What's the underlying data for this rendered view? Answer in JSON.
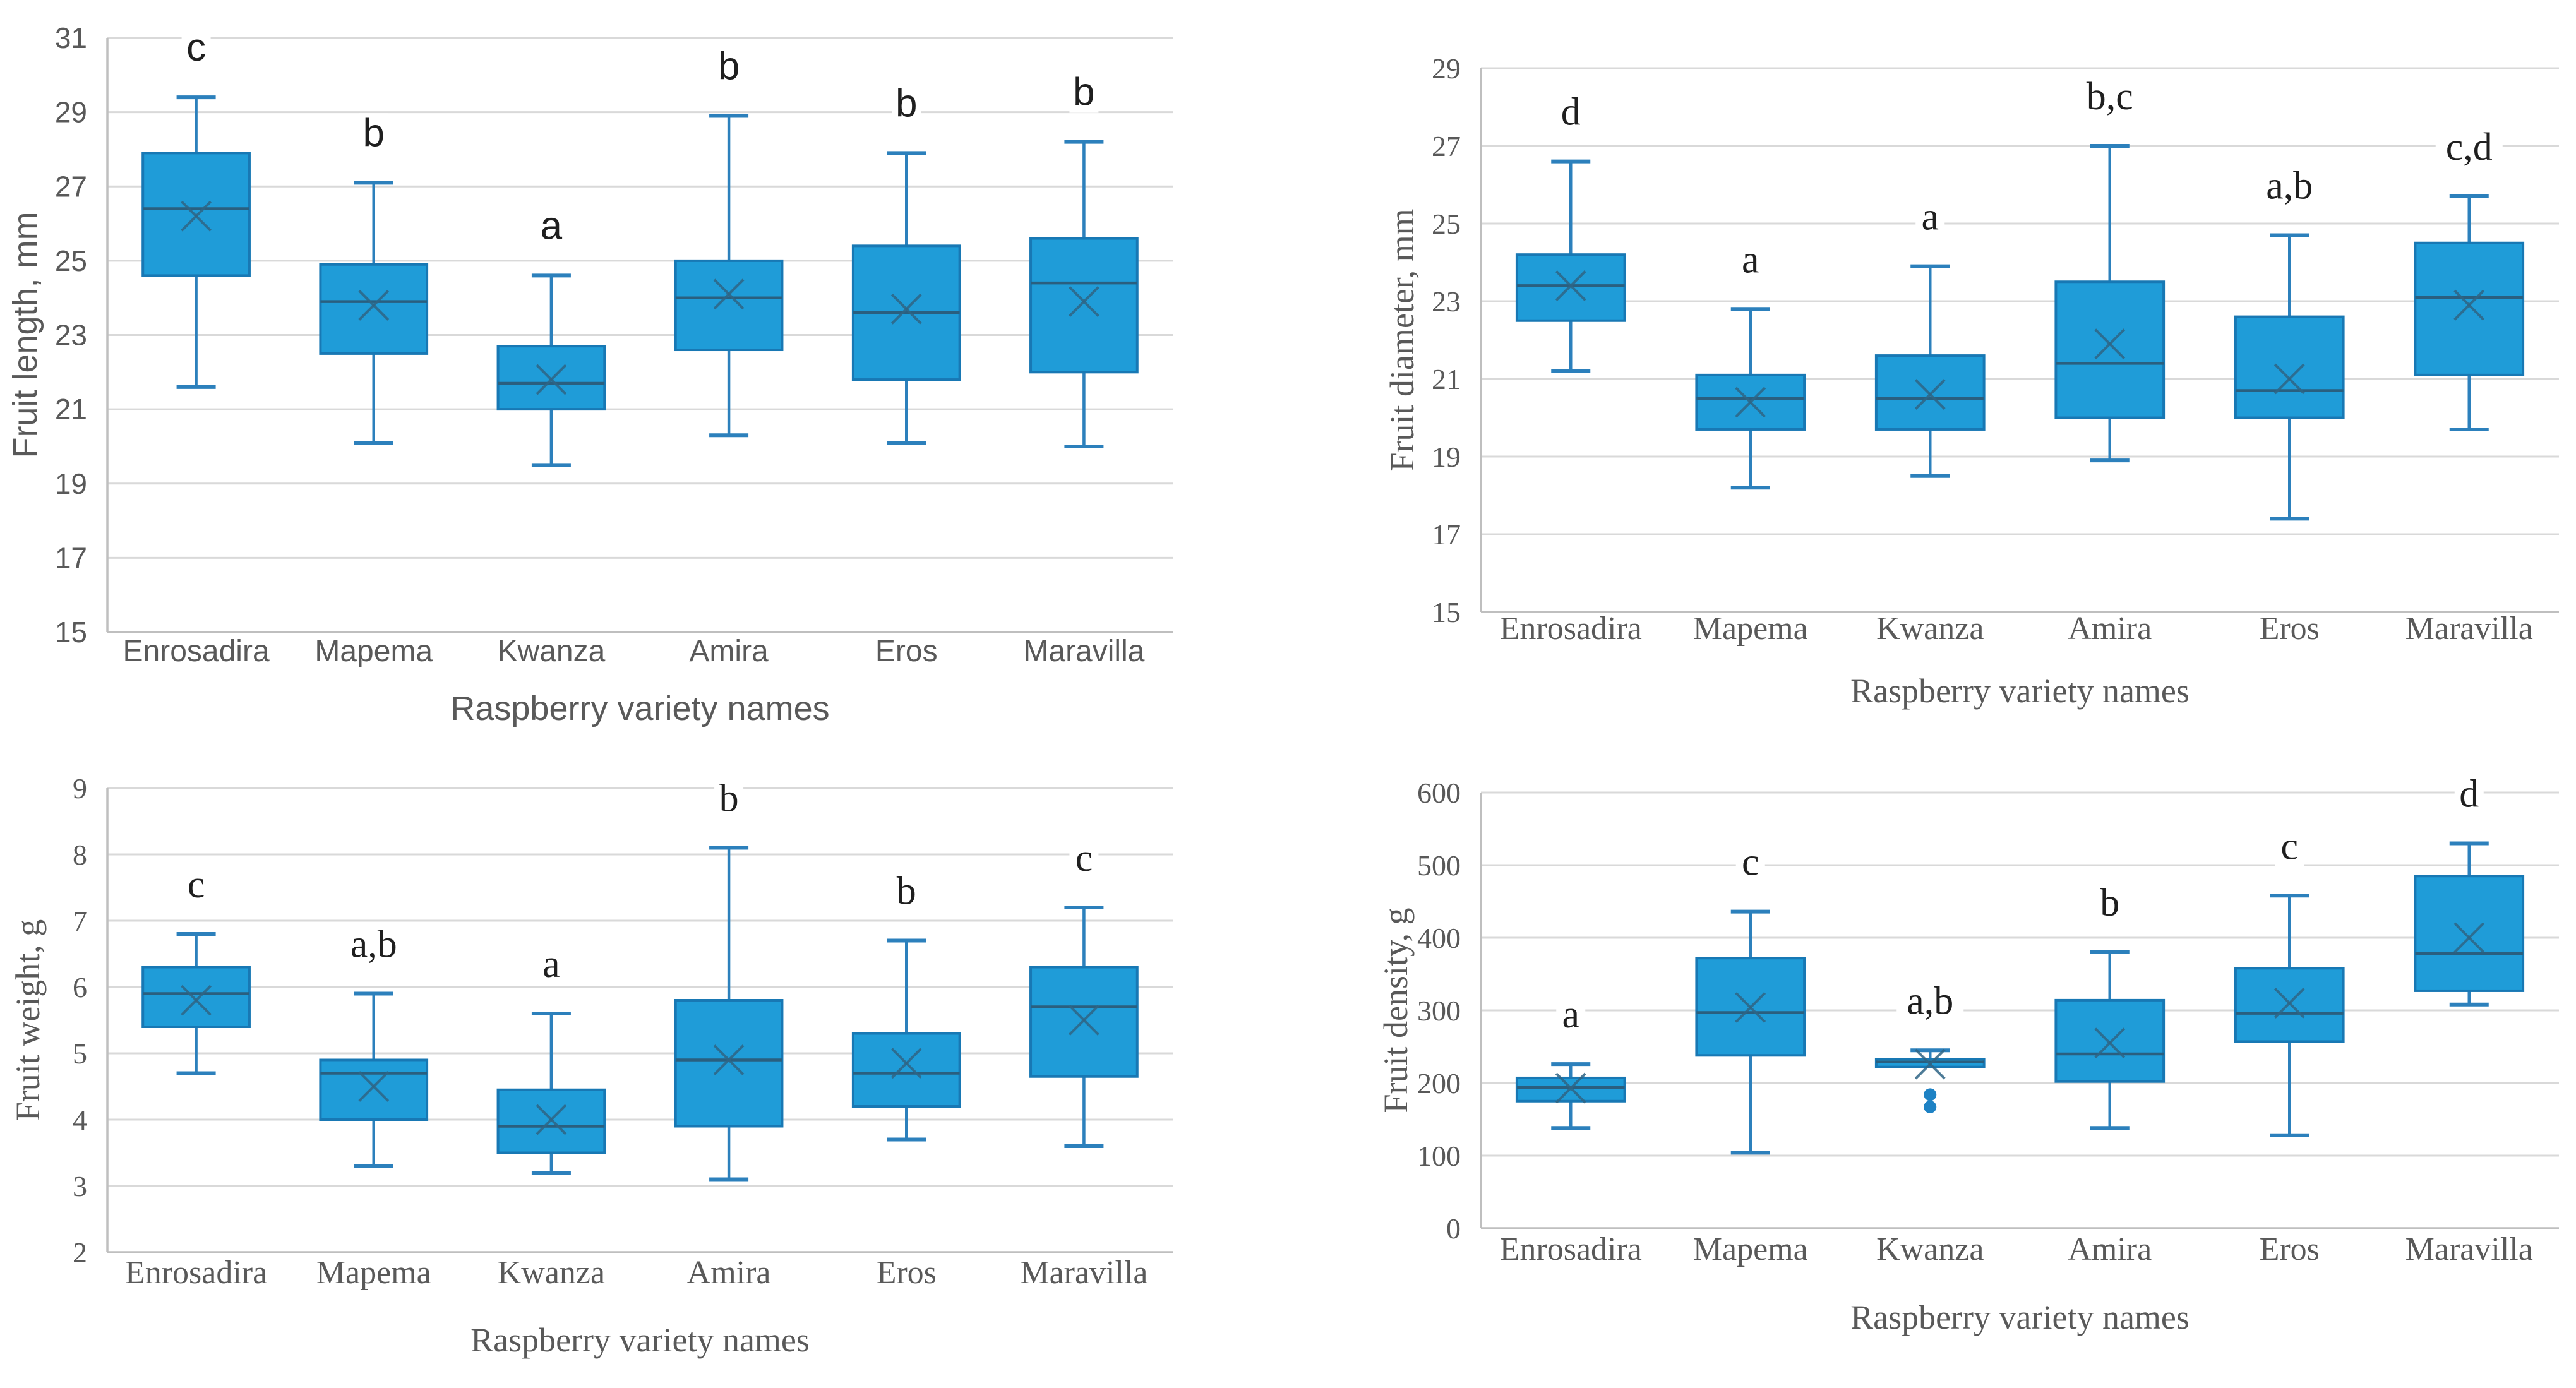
{
  "figure": {
    "description": "Four box-and-whisker plots comparing raspberry varieties",
    "background": "#ffffff"
  },
  "style": {
    "box_fill": "#1F9CD8",
    "box_stroke": "#1878B4",
    "whisker_color": "#2C80BC",
    "median_color": "#2A5F7F",
    "mean_marker_color": "#2F6585",
    "outlier_color": "#1E82C4",
    "gridline_color": "#D9D9D9",
    "axis_color": "#BFBFBF",
    "tick_text_color": "#595959",
    "axis_title_color": "#595959",
    "letter_text_color": "#1F1F1F"
  },
  "chart_data": [
    {
      "type": "box",
      "ylabel": "Fruit length, mm",
      "xlabel": "Raspberry variety names",
      "ylim": [
        15,
        31
      ],
      "ystep": 2,
      "yticks": [
        15,
        17,
        19,
        21,
        23,
        25,
        27,
        29,
        31
      ],
      "grid": true,
      "categories": [
        "Enrosadira",
        "Mapema",
        "Kwanza",
        "Amira",
        "Eros",
        "Maravilla"
      ],
      "series": [
        {
          "category": "Enrosadira",
          "letter": "c",
          "whisker_low": 21.6,
          "q1": 24.6,
          "median": 26.4,
          "mean": 26.2,
          "q3": 27.9,
          "whisker_high": 29.4,
          "outliers": []
        },
        {
          "category": "Mapema",
          "letter": "b",
          "whisker_low": 20.1,
          "q1": 22.5,
          "median": 23.9,
          "mean": 23.8,
          "q3": 24.9,
          "whisker_high": 27.1,
          "outliers": []
        },
        {
          "category": "Kwanza",
          "letter": "a",
          "whisker_low": 19.5,
          "q1": 21.0,
          "median": 21.7,
          "mean": 21.8,
          "q3": 22.7,
          "whisker_high": 24.6,
          "outliers": []
        },
        {
          "category": "Amira",
          "letter": "b",
          "whisker_low": 20.3,
          "q1": 22.6,
          "median": 24.0,
          "mean": 24.1,
          "q3": 25.0,
          "whisker_high": 28.9,
          "outliers": []
        },
        {
          "category": "Eros",
          "letter": "b",
          "whisker_low": 20.1,
          "q1": 21.8,
          "median": 23.6,
          "mean": 23.7,
          "q3": 25.4,
          "whisker_high": 27.9,
          "outliers": []
        },
        {
          "category": "Maravilla",
          "letter": "b",
          "whisker_low": 20.0,
          "q1": 22.0,
          "median": 24.4,
          "mean": 23.9,
          "q3": 25.6,
          "whisker_high": 28.2,
          "outliers": []
        }
      ]
    },
    {
      "type": "box",
      "ylabel": "Fruit diameter, mm",
      "xlabel": "Raspberry variety names",
      "ylim": [
        15,
        29
      ],
      "ystep": 2,
      "yticks": [
        15,
        17,
        19,
        21,
        23,
        25,
        27,
        29
      ],
      "grid": true,
      "categories": [
        "Enrosadira",
        "Mapema",
        "Kwanza",
        "Amira",
        "Eros",
        "Maravilla"
      ],
      "series": [
        {
          "category": "Enrosadira",
          "letter": "d",
          "whisker_low": 21.2,
          "q1": 22.5,
          "median": 23.4,
          "mean": 23.4,
          "q3": 24.2,
          "whisker_high": 26.6,
          "outliers": []
        },
        {
          "category": "Mapema",
          "letter": "a",
          "whisker_low": 18.2,
          "q1": 19.7,
          "median": 20.5,
          "mean": 20.4,
          "q3": 21.1,
          "whisker_high": 22.8,
          "outliers": []
        },
        {
          "category": "Kwanza",
          "letter": "a",
          "whisker_low": 18.5,
          "q1": 19.7,
          "median": 20.5,
          "mean": 20.6,
          "q3": 21.6,
          "whisker_high": 23.9,
          "outliers": []
        },
        {
          "category": "Amira",
          "letter": "b,c",
          "whisker_low": 18.9,
          "q1": 20.0,
          "median": 21.4,
          "mean": 21.9,
          "q3": 23.5,
          "whisker_high": 27.0,
          "outliers": []
        },
        {
          "category": "Eros",
          "letter": "a,b",
          "whisker_low": 17.4,
          "q1": 20.0,
          "median": 20.7,
          "mean": 21.0,
          "q3": 22.6,
          "whisker_high": 24.7,
          "outliers": []
        },
        {
          "category": "Maravilla",
          "letter": "c,d",
          "whisker_low": 19.7,
          "q1": 21.1,
          "median": 23.1,
          "mean": 22.9,
          "q3": 24.5,
          "whisker_high": 25.7,
          "outliers": []
        }
      ]
    },
    {
      "type": "box",
      "ylabel": "Fruit weight, g",
      "xlabel": "Raspberry variety names",
      "ylim": [
        2,
        9
      ],
      "ystep": 1,
      "yticks": [
        2,
        3,
        4,
        5,
        6,
        7,
        8,
        9
      ],
      "grid": true,
      "categories": [
        "Enrosadira",
        "Mapema",
        "Kwanza",
        "Amira",
        "Eros",
        "Maravilla"
      ],
      "series": [
        {
          "category": "Enrosadira",
          "letter": "c",
          "whisker_low": 4.7,
          "q1": 5.4,
          "median": 5.9,
          "mean": 5.8,
          "q3": 6.3,
          "whisker_high": 6.8,
          "outliers": []
        },
        {
          "category": "Mapema",
          "letter": "a,b",
          "whisker_low": 3.3,
          "q1": 4.0,
          "median": 4.7,
          "mean": 4.5,
          "q3": 4.9,
          "whisker_high": 5.9,
          "outliers": []
        },
        {
          "category": "Kwanza",
          "letter": "a",
          "whisker_low": 3.2,
          "q1": 3.5,
          "median": 3.9,
          "mean": 4.0,
          "q3": 4.45,
          "whisker_high": 5.6,
          "outliers": []
        },
        {
          "category": "Amira",
          "letter": "b",
          "whisker_low": 3.1,
          "q1": 3.9,
          "median": 4.9,
          "mean": 4.9,
          "q3": 5.8,
          "whisker_high": 8.1,
          "outliers": []
        },
        {
          "category": "Eros",
          "letter": "b",
          "whisker_low": 3.7,
          "q1": 4.2,
          "median": 4.7,
          "mean": 4.85,
          "q3": 5.3,
          "whisker_high": 6.7,
          "outliers": []
        },
        {
          "category": "Maravilla",
          "letter": "c",
          "whisker_low": 3.6,
          "q1": 4.65,
          "median": 5.7,
          "mean": 5.5,
          "q3": 6.3,
          "whisker_high": 7.2,
          "outliers": []
        }
      ]
    },
    {
      "type": "box",
      "ylabel": "Fruit density, g",
      "xlabel": "Raspberry variety names",
      "ylim": [
        0,
        600
      ],
      "ystep": 100,
      "yticks": [
        0,
        100,
        200,
        300,
        400,
        500,
        600
      ],
      "grid": true,
      "categories": [
        "Enrosadira",
        "Mapema",
        "Kwanza",
        "Amira",
        "Eros",
        "Maravilla"
      ],
      "series": [
        {
          "category": "Enrosadira",
          "letter": "a",
          "whisker_low": 138,
          "q1": 175,
          "median": 194,
          "mean": 193,
          "q3": 207,
          "whisker_high": 226,
          "outliers": []
        },
        {
          "category": "Mapema",
          "letter": "c",
          "whisker_low": 104,
          "q1": 238,
          "median": 297,
          "mean": 304,
          "q3": 372,
          "whisker_high": 436,
          "outliers": []
        },
        {
          "category": "Kwanza",
          "letter": "a,b",
          "whisker_low": 222,
          "q1": 222,
          "median": 229,
          "mean": 226,
          "q3": 233,
          "whisker_high": 245,
          "outliers": [
            184,
            167
          ]
        },
        {
          "category": "Amira",
          "letter": "b",
          "whisker_low": 138,
          "q1": 202,
          "median": 240,
          "mean": 255,
          "q3": 314,
          "whisker_high": 380,
          "outliers": []
        },
        {
          "category": "Eros",
          "letter": "c",
          "whisker_low": 128,
          "q1": 257,
          "median": 296,
          "mean": 310,
          "q3": 358,
          "whisker_high": 458,
          "outliers": []
        },
        {
          "category": "Maravilla",
          "letter": "d",
          "whisker_low": 308,
          "q1": 327,
          "median": 378,
          "mean": 400,
          "q3": 485,
          "whisker_high": 530,
          "outliers": []
        }
      ]
    }
  ]
}
